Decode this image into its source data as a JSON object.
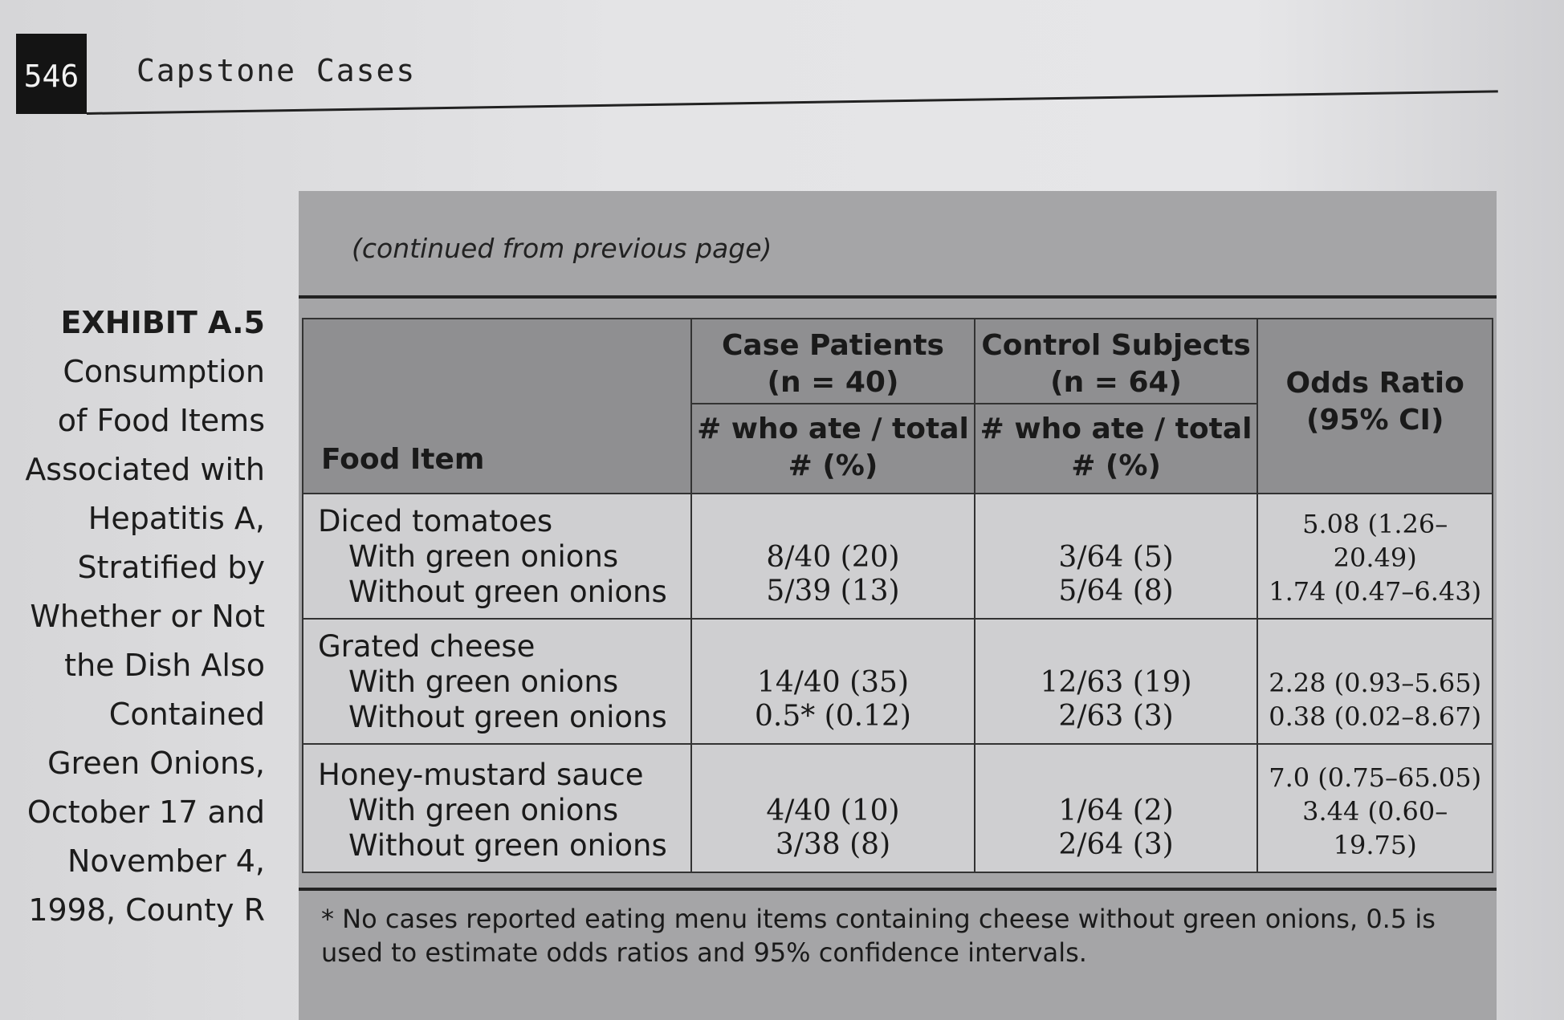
{
  "header": {
    "page_number": "546",
    "running_title": "Capstone Cases"
  },
  "exhibit": {
    "label": "EXHIBIT A.5",
    "caption": "Consumption of Food Items Associated with Hepatitis A, Stratified by Whether or Not the Dish Also Contained Green Onions, October 17 and November 4, 1998, County R"
  },
  "table": {
    "continued_note": "(continued from previous page)",
    "headers": {
      "food_item": "Food Item",
      "case_patients": "Case Patients",
      "case_n": "(n = 40)",
      "control_subjects": "Control Subjects",
      "control_n": "(n = 64)",
      "case_sub": "# who ate / total # (%)",
      "control_sub": "# who ate / total # (%)",
      "odds_ratio": "Odds Ratio",
      "odds_ci": "(95% CI)"
    },
    "rows": [
      {
        "food": "Diced tomatoes",
        "with_label": "With green onions",
        "without_label": "Without green onions",
        "case_with": "8/40 (20)",
        "case_without": "5/39 (13)",
        "control_with": "3/64 (5)",
        "control_without": "5/64 (8)",
        "or_with": "5.08 (1.26–20.49)",
        "or_without": "1.74 (0.47–6.43)"
      },
      {
        "food": "Grated cheese",
        "with_label": "With green onions",
        "without_label": "Without green onions",
        "case_with": "14/40 (35)",
        "case_without": "0.5* (0.12)",
        "control_with": "12/63 (19)",
        "control_without": "2/63 (3)",
        "or_with": "2.28 (0.93–5.65)",
        "or_without": "0.38 (0.02–8.67)"
      },
      {
        "food": "Honey-mustard sauce",
        "with_label": "With green onions",
        "without_label": "Without green onions",
        "case_with": "4/40 (10)",
        "case_without": "3/38 (8)",
        "control_with": "1/64 (2)",
        "control_without": "2/64 (3)",
        "or_with": "7.0 (0.75–65.05)",
        "or_without": "3.44 (0.60–19.75)"
      }
    ],
    "footnote": "* No cases reported eating menu items containing cheese without green onions, 0.5 is used to estimate odds ratios and 95% confidence intervals."
  }
}
